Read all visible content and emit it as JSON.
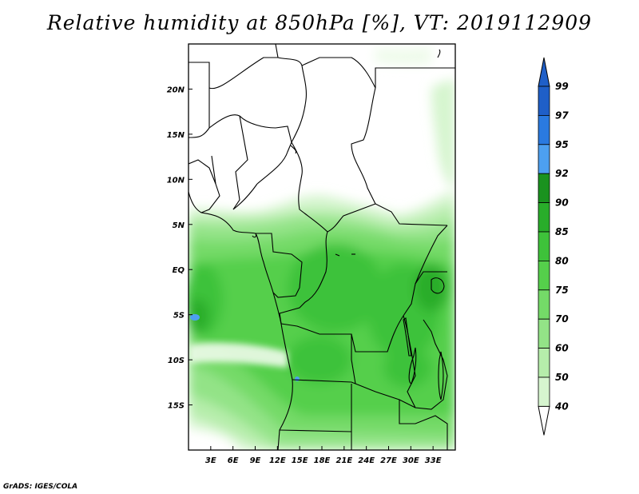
{
  "title": "Relative humidity at 850hPa [%], VT: 2019112909",
  "credit": "GrADS: IGES/COLA",
  "map": {
    "lon_range": [
      0,
      36
    ],
    "lat_range": [
      -20,
      25
    ],
    "x_ticks": [
      {
        "value": 3,
        "label": "3E"
      },
      {
        "value": 6,
        "label": "6E"
      },
      {
        "value": 9,
        "label": "9E"
      },
      {
        "value": 12,
        "label": "12E"
      },
      {
        "value": 15,
        "label": "15E"
      },
      {
        "value": 18,
        "label": "18E"
      },
      {
        "value": 21,
        "label": "21E"
      },
      {
        "value": 24,
        "label": "24E"
      },
      {
        "value": 27,
        "label": "27E"
      },
      {
        "value": 30,
        "label": "30E"
      },
      {
        "value": 33,
        "label": "33E"
      }
    ],
    "y_ticks": [
      {
        "value": 20,
        "label": "20N"
      },
      {
        "value": 15,
        "label": "15N"
      },
      {
        "value": 10,
        "label": "10N"
      },
      {
        "value": 5,
        "label": "5N"
      },
      {
        "value": 0,
        "label": "EQ"
      },
      {
        "value": -5,
        "label": "5S"
      },
      {
        "value": -10,
        "label": "10S"
      },
      {
        "value": -15,
        "label": "15S"
      }
    ]
  },
  "colorbar": {
    "levels": [
      {
        "label": "40",
        "color": "#eefbea"
      },
      {
        "label": "50",
        "color": "#d6f5cf"
      },
      {
        "label": "60",
        "color": "#b6edab"
      },
      {
        "label": "70",
        "color": "#93e387"
      },
      {
        "label": "75",
        "color": "#74da68"
      },
      {
        "label": "80",
        "color": "#55cf4b"
      },
      {
        "label": "85",
        "color": "#3ec23a"
      },
      {
        "label": "90",
        "color": "#29ad2a"
      },
      {
        "label": "92",
        "color": "#1a921f"
      },
      {
        "label": "95",
        "color": "#4da0f0"
      },
      {
        "label": "97",
        "color": "#2a7ae0"
      },
      {
        "label": "99",
        "color": "#1f5fc8"
      }
    ],
    "top_color": "#1f5fc8",
    "bottom_color": "#ffffff"
  }
}
